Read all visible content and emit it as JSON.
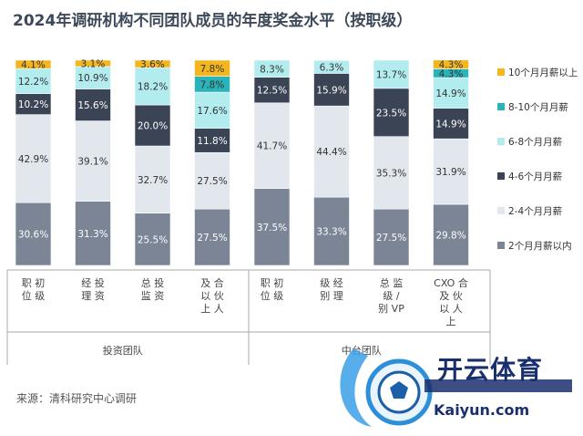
{
  "chart_data": {
    "type": "bar",
    "stacked": true,
    "title": "2024年调研机构不同团队成员的年度奖金水平（按职级）",
    "categories": [
      "职 初\n位 级",
      "经 投\n理 资",
      "总 投\n监 资",
      "及 合\n以 伙\n上 人",
      "职 初\n位 级",
      "级 经\n别 理",
      "总 监\n级 /\n别 VP",
      "CXO 合\n及 伙\n以 人\n上"
    ],
    "groups": [
      {
        "label": "投资团队",
        "from": 0,
        "to": 3
      },
      {
        "label": "中台团队",
        "from": 4,
        "to": 7
      }
    ],
    "series": [
      {
        "name": "2个月月薪以内",
        "color": "#7b8596",
        "values": [
          30.6,
          31.3,
          25.5,
          27.5,
          37.5,
          33.3,
          27.5,
          29.8
        ]
      },
      {
        "name": "2-4个月月薪",
        "color": "#e2e7ee",
        "values": [
          42.9,
          39.1,
          32.7,
          27.5,
          41.7,
          44.4,
          35.3,
          31.9
        ]
      },
      {
        "name": "4-6个月月薪",
        "color": "#3b4454",
        "values": [
          10.2,
          15.6,
          20.0,
          11.8,
          12.5,
          15.9,
          23.5,
          14.9
        ]
      },
      {
        "name": "6-8个月月薪",
        "color": "#b3ecef",
        "values": [
          12.2,
          10.9,
          18.2,
          17.6,
          8.3,
          6.3,
          13.7,
          14.9
        ]
      },
      {
        "name": "8-10个月月薪",
        "color": "#2ab3b9",
        "values": [
          0,
          0,
          0,
          7.8,
          0,
          0,
          0,
          4.3
        ]
      },
      {
        "name": "10个月月薪以上",
        "color": "#f3b61f",
        "values": [
          4.1,
          3.1,
          3.6,
          7.8,
          0,
          0,
          0,
          4.3
        ]
      }
    ],
    "legend_position": "right",
    "ylim": [
      0,
      100
    ]
  },
  "source": "来源：清科研究中心调研",
  "watermark": {
    "brand": "开云体育",
    "url": "Kaiyun.com"
  }
}
